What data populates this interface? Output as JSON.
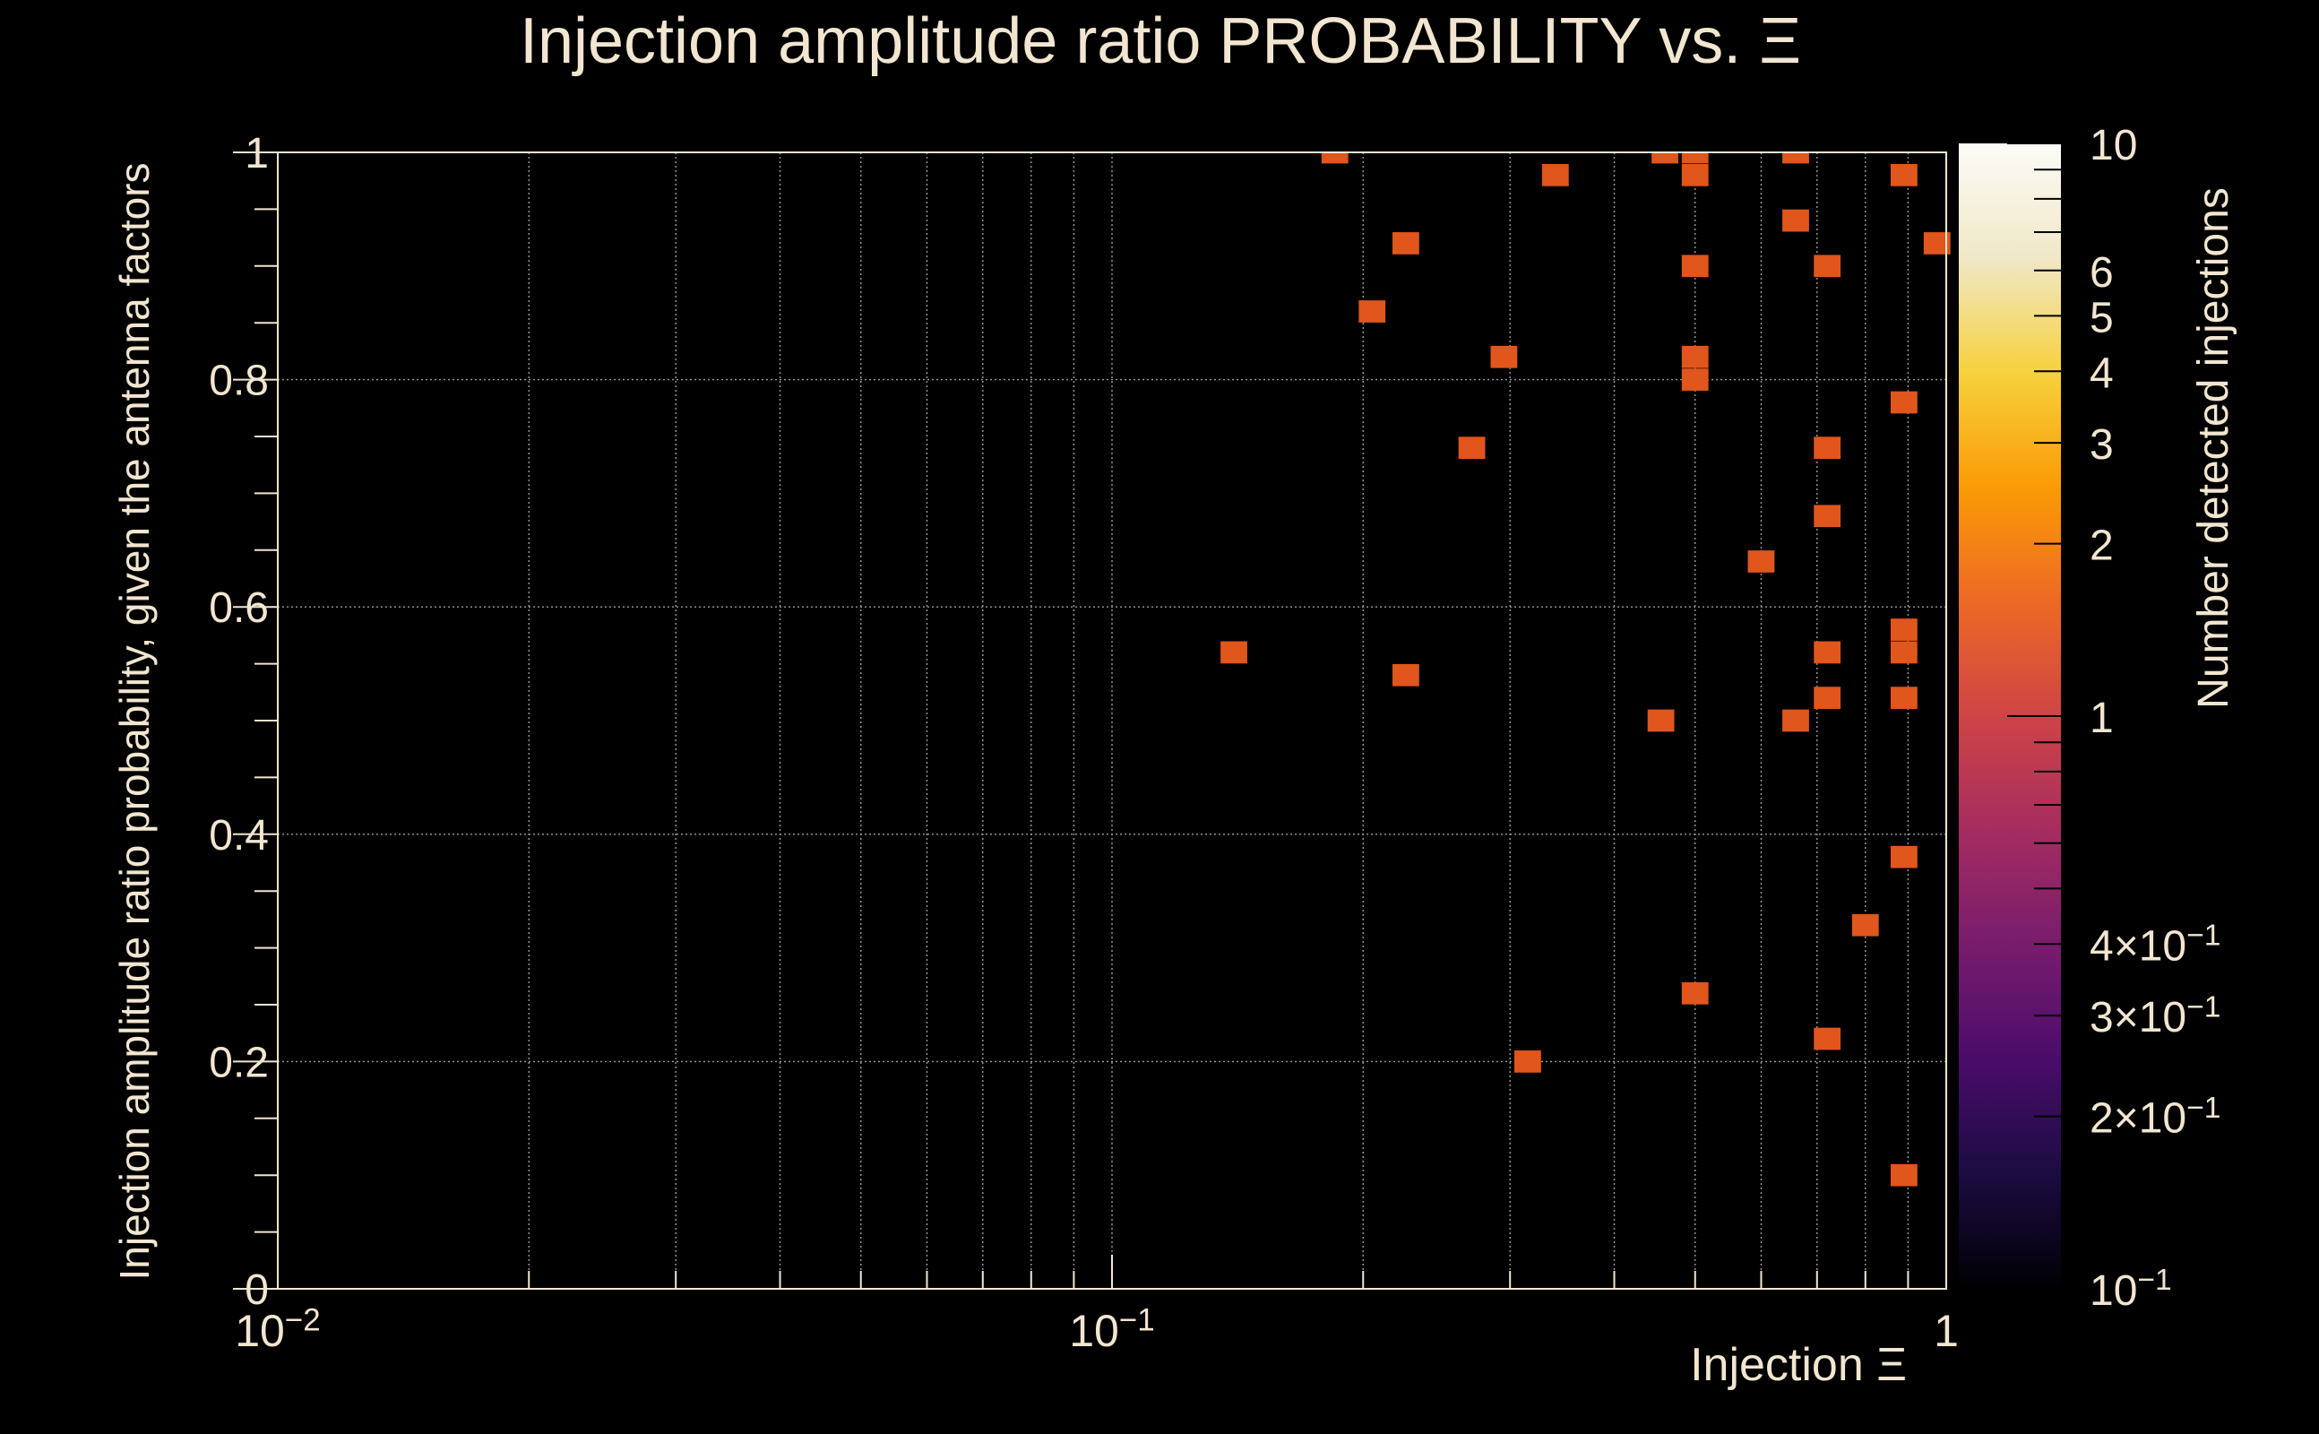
{
  "chart_data": {
    "type": "heatmap",
    "title": "Injection amplitude ratio PROBABILITY vs.  Ξ",
    "xlabel": "Injection Ξ",
    "ylabel": "Injection amplitude ratio probability, given the antenna factors",
    "zlabel": "Number detected injections",
    "x_scale": "log",
    "xlim": [
      0.01,
      1
    ],
    "ylim": [
      0,
      1
    ],
    "zlim": [
      0.1,
      10
    ],
    "z_scale": "log",
    "grid": true,
    "x_ticks": [
      {
        "value": 0.01,
        "base": "10",
        "exp": "−2"
      },
      {
        "value": 0.1,
        "base": "10",
        "exp": "−1"
      },
      {
        "value": 1,
        "base": "1",
        "exp": ""
      }
    ],
    "y_ticks": [
      {
        "value": 0,
        "label": "0"
      },
      {
        "value": 0.2,
        "label": "0.2"
      },
      {
        "value": 0.4,
        "label": "0.4"
      },
      {
        "value": 0.6,
        "label": "0.6"
      },
      {
        "value": 0.8,
        "label": "0.8"
      },
      {
        "value": 1,
        "label": "1"
      }
    ],
    "z_ticks": [
      {
        "value": 10,
        "base": "10",
        "exp": ""
      },
      {
        "value": 6,
        "base": "6",
        "exp": ""
      },
      {
        "value": 5,
        "base": "5",
        "exp": ""
      },
      {
        "value": 4,
        "base": "4",
        "exp": ""
      },
      {
        "value": 3,
        "base": "3",
        "exp": ""
      },
      {
        "value": 2,
        "base": "2",
        "exp": ""
      },
      {
        "value": 1,
        "base": "1",
        "exp": ""
      },
      {
        "value": 0.4,
        "base": "4×10",
        "exp": "−1"
      },
      {
        "value": 0.3,
        "base": "3×10",
        "exp": "−1"
      },
      {
        "value": 0.2,
        "base": "2×10",
        "exp": "−1"
      },
      {
        "value": 0.1,
        "base": "10",
        "exp": "−1"
      }
    ],
    "colors": {
      "background": "#000000",
      "text": "#f2e6d0",
      "grid": "#9a9a9a",
      "cell": "#e0561c",
      "colormap": [
        "#000003",
        "#1b0c41",
        "#4a0c6b",
        "#781c6d",
        "#a52c60",
        "#cf4446",
        "#ed6925",
        "#fb9b06",
        "#f7d13d",
        "#f0e8c8",
        "#fcfcf7"
      ]
    },
    "cells": [
      {
        "x": 0.185,
        "y": 1.0,
        "z": 1
      },
      {
        "x": 0.34,
        "y": 0.98,
        "z": 1
      },
      {
        "x": 0.46,
        "y": 1.0,
        "z": 1
      },
      {
        "x": 0.5,
        "y": 1.0,
        "z": 1
      },
      {
        "x": 0.5,
        "y": 0.98,
        "z": 1
      },
      {
        "x": 0.66,
        "y": 1.0,
        "z": 1
      },
      {
        "x": 0.89,
        "y": 0.98,
        "z": 1
      },
      {
        "x": 0.66,
        "y": 0.94,
        "z": 1
      },
      {
        "x": 0.225,
        "y": 0.92,
        "z": 1
      },
      {
        "x": 0.975,
        "y": 0.92,
        "z": 1
      },
      {
        "x": 0.5,
        "y": 0.9,
        "z": 1
      },
      {
        "x": 0.72,
        "y": 0.9,
        "z": 1
      },
      {
        "x": 0.205,
        "y": 0.86,
        "z": 1
      },
      {
        "x": 0.295,
        "y": 0.82,
        "z": 1
      },
      {
        "x": 0.5,
        "y": 0.82,
        "z": 1
      },
      {
        "x": 0.5,
        "y": 0.8,
        "z": 1
      },
      {
        "x": 0.89,
        "y": 0.78,
        "z": 1
      },
      {
        "x": 0.27,
        "y": 0.74,
        "z": 1
      },
      {
        "x": 0.72,
        "y": 0.74,
        "z": 1
      },
      {
        "x": 0.72,
        "y": 0.68,
        "z": 1
      },
      {
        "x": 0.6,
        "y": 0.64,
        "z": 1
      },
      {
        "x": 0.89,
        "y": 0.58,
        "z": 1
      },
      {
        "x": 0.89,
        "y": 0.56,
        "z": 1
      },
      {
        "x": 0.14,
        "y": 0.56,
        "z": 1
      },
      {
        "x": 0.72,
        "y": 0.56,
        "z": 1
      },
      {
        "x": 0.225,
        "y": 0.54,
        "z": 1
      },
      {
        "x": 0.72,
        "y": 0.52,
        "z": 1
      },
      {
        "x": 0.89,
        "y": 0.52,
        "z": 1
      },
      {
        "x": 0.455,
        "y": 0.5,
        "z": 1
      },
      {
        "x": 0.66,
        "y": 0.5,
        "z": 1
      },
      {
        "x": 0.89,
        "y": 0.38,
        "z": 1
      },
      {
        "x": 0.8,
        "y": 0.32,
        "z": 1
      },
      {
        "x": 0.5,
        "y": 0.26,
        "z": 1
      },
      {
        "x": 0.72,
        "y": 0.22,
        "z": 1
      },
      {
        "x": 0.315,
        "y": 0.2,
        "z": 1
      },
      {
        "x": 0.89,
        "y": 0.1,
        "z": 1
      }
    ]
  }
}
